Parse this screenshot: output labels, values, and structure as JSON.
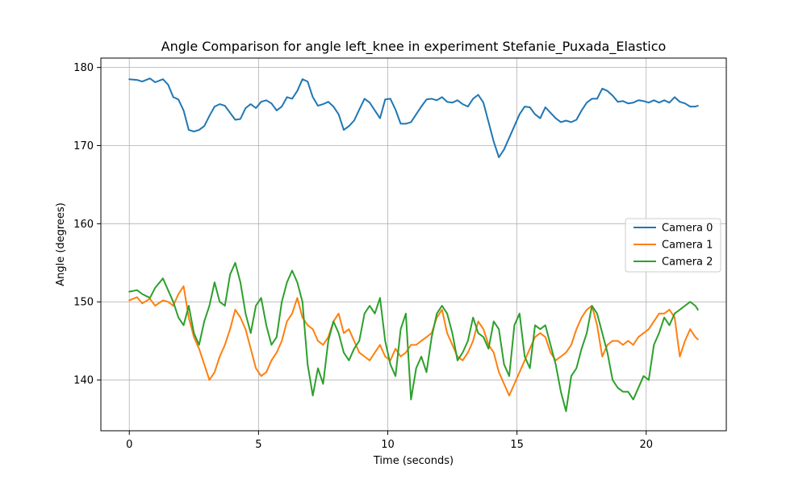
{
  "chart_data": {
    "type": "line",
    "title": "Angle Comparison for angle left_knee in experiment Stefanie_Puxada_Elastico",
    "xlabel": "Time (seconds)",
    "ylabel": "Angle (degrees)",
    "xlim": [
      -1.1,
      23.1
    ],
    "ylim": [
      133.5,
      181.2
    ],
    "xticks": [
      0,
      5,
      10,
      15,
      20
    ],
    "yticks": [
      140,
      150,
      160,
      170,
      180
    ],
    "grid": true,
    "legend_position": "center-right",
    "series": [
      {
        "name": "Camera 0",
        "color": "#1f77b4",
        "x": [
          0,
          0.3,
          0.5,
          0.8,
          1.0,
          1.3,
          1.5,
          1.7,
          1.9,
          2.1,
          2.3,
          2.5,
          2.7,
          2.9,
          3.1,
          3.3,
          3.5,
          3.7,
          3.9,
          4.1,
          4.3,
          4.5,
          4.7,
          4.9,
          5.1,
          5.3,
          5.5,
          5.7,
          5.9,
          6.1,
          6.3,
          6.5,
          6.7,
          6.9,
          7.1,
          7.3,
          7.5,
          7.7,
          7.9,
          8.1,
          8.3,
          8.5,
          8.7,
          8.9,
          9.1,
          9.3,
          9.5,
          9.7,
          9.9,
          10.1,
          10.3,
          10.5,
          10.7,
          10.9,
          11.1,
          11.3,
          11.5,
          11.7,
          11.9,
          12.1,
          12.3,
          12.5,
          12.7,
          12.9,
          13.1,
          13.3,
          13.5,
          13.7,
          13.9,
          14.1,
          14.3,
          14.5,
          14.7,
          14.9,
          15.1,
          15.3,
          15.5,
          15.7,
          15.9,
          16.1,
          16.3,
          16.5,
          16.7,
          16.9,
          17.1,
          17.3,
          17.5,
          17.7,
          17.9,
          18.1,
          18.3,
          18.5,
          18.7,
          18.9,
          19.1,
          19.3,
          19.5,
          19.7,
          19.9,
          20.1,
          20.3,
          20.5,
          20.7,
          20.9,
          21.1,
          21.3,
          21.5,
          21.7,
          21.9,
          22.0
        ],
        "values": [
          178.5,
          178.4,
          178.2,
          178.6,
          178.1,
          178.5,
          177.8,
          176.2,
          175.9,
          174.5,
          172.0,
          171.8,
          172.0,
          172.5,
          173.8,
          175.0,
          175.3,
          175.1,
          174.2,
          173.3,
          173.4,
          174.8,
          175.3,
          174.8,
          175.6,
          175.8,
          175.4,
          174.5,
          175.0,
          176.2,
          176.0,
          177.0,
          178.5,
          178.2,
          176.2,
          175.1,
          175.3,
          175.6,
          175.0,
          174.0,
          172.0,
          172.5,
          173.2,
          174.6,
          176.0,
          175.5,
          174.5,
          173.5,
          175.9,
          176.0,
          174.6,
          172.8,
          172.8,
          173.0,
          174.0,
          175.0,
          175.9,
          176.0,
          175.8,
          176.2,
          175.6,
          175.5,
          175.8,
          175.3,
          175.0,
          176.0,
          176.5,
          175.5,
          173.0,
          170.5,
          168.5,
          169.5,
          171.0,
          172.5,
          174.0,
          175.0,
          174.9,
          174.0,
          173.5,
          174.9,
          174.2,
          173.5,
          173.0,
          173.2,
          173.0,
          173.3,
          174.5,
          175.5,
          176.0,
          176.0,
          177.3,
          177.0,
          176.4,
          175.6,
          175.7,
          175.4,
          175.5,
          175.8,
          175.7,
          175.5,
          175.8,
          175.5,
          175.8,
          175.5,
          176.2,
          175.6,
          175.4,
          175.0,
          175.0,
          175.1
        ]
      },
      {
        "name": "Camera 1",
        "color": "#ff7f0e",
        "x": [
          0,
          0.3,
          0.5,
          0.8,
          1.0,
          1.3,
          1.5,
          1.7,
          1.9,
          2.1,
          2.3,
          2.5,
          2.7,
          2.9,
          3.1,
          3.3,
          3.5,
          3.7,
          3.9,
          4.1,
          4.3,
          4.5,
          4.7,
          4.9,
          5.1,
          5.3,
          5.5,
          5.7,
          5.9,
          6.1,
          6.3,
          6.5,
          6.7,
          6.9,
          7.1,
          7.3,
          7.5,
          7.7,
          7.9,
          8.1,
          8.3,
          8.5,
          8.7,
          8.9,
          9.1,
          9.3,
          9.5,
          9.7,
          9.9,
          10.1,
          10.3,
          10.5,
          10.7,
          10.9,
          11.1,
          11.3,
          11.5,
          11.7,
          11.9,
          12.1,
          12.3,
          12.5,
          12.7,
          12.9,
          13.1,
          13.3,
          13.5,
          13.7,
          13.9,
          14.1,
          14.3,
          14.5,
          14.7,
          14.9,
          15.1,
          15.3,
          15.5,
          15.7,
          15.9,
          16.1,
          16.3,
          16.5,
          16.7,
          16.9,
          17.1,
          17.3,
          17.5,
          17.7,
          17.9,
          18.1,
          18.3,
          18.5,
          18.7,
          18.9,
          19.1,
          19.3,
          19.5,
          19.7,
          19.9,
          20.1,
          20.3,
          20.5,
          20.7,
          20.9,
          21.1,
          21.3,
          21.5,
          21.7,
          21.9,
          22.0
        ],
        "values": [
          150.2,
          150.6,
          149.8,
          150.4,
          149.5,
          150.2,
          150.0,
          149.5,
          151.0,
          152.0,
          148.0,
          145.5,
          144.0,
          142.0,
          140.0,
          141.0,
          143.0,
          144.5,
          146.5,
          149.0,
          148.0,
          146.5,
          144.0,
          141.5,
          140.5,
          141.0,
          142.5,
          143.5,
          145.0,
          147.5,
          148.5,
          150.5,
          148.0,
          147.0,
          146.5,
          145.0,
          144.5,
          145.5,
          147.5,
          148.5,
          146.0,
          146.5,
          145.0,
          143.5,
          143.0,
          142.5,
          143.5,
          144.5,
          143.0,
          142.5,
          144.0,
          143.0,
          143.5,
          144.5,
          144.5,
          145.0,
          145.5,
          146.0,
          148.0,
          149.0,
          146.0,
          144.5,
          143.0,
          142.5,
          143.5,
          145.0,
          147.5,
          146.5,
          144.5,
          143.5,
          141.0,
          139.5,
          138.0,
          139.5,
          141.0,
          142.5,
          144.0,
          145.5,
          146.0,
          145.5,
          143.5,
          142.5,
          143.0,
          143.5,
          144.5,
          146.5,
          148.0,
          149.0,
          149.5,
          147.0,
          143.0,
          144.5,
          145.0,
          145.0,
          144.5,
          145.0,
          144.5,
          145.5,
          146.0,
          146.5,
          147.5,
          148.5,
          148.5,
          149.0,
          148.0,
          143.0,
          145.0,
          146.5,
          145.5,
          145.2
        ]
      },
      {
        "name": "Camera 2",
        "color": "#2ca02c",
        "x": [
          0,
          0.3,
          0.5,
          0.8,
          1.0,
          1.3,
          1.5,
          1.7,
          1.9,
          2.1,
          2.3,
          2.5,
          2.7,
          2.9,
          3.1,
          3.3,
          3.5,
          3.7,
          3.9,
          4.1,
          4.3,
          4.5,
          4.7,
          4.9,
          5.1,
          5.3,
          5.5,
          5.7,
          5.9,
          6.1,
          6.3,
          6.5,
          6.7,
          6.9,
          7.1,
          7.3,
          7.5,
          7.7,
          7.9,
          8.1,
          8.3,
          8.5,
          8.7,
          8.9,
          9.1,
          9.3,
          9.5,
          9.7,
          9.9,
          10.1,
          10.3,
          10.5,
          10.7,
          10.9,
          11.1,
          11.3,
          11.5,
          11.7,
          11.9,
          12.1,
          12.3,
          12.5,
          12.7,
          12.9,
          13.1,
          13.3,
          13.5,
          13.7,
          13.9,
          14.1,
          14.3,
          14.5,
          14.7,
          14.9,
          15.1,
          15.3,
          15.5,
          15.7,
          15.9,
          16.1,
          16.3,
          16.5,
          16.7,
          16.9,
          17.1,
          17.3,
          17.5,
          17.7,
          17.9,
          18.1,
          18.3,
          18.5,
          18.7,
          18.9,
          19.1,
          19.3,
          19.5,
          19.7,
          19.9,
          20.1,
          20.3,
          20.5,
          20.7,
          20.9,
          21.1,
          21.3,
          21.5,
          21.7,
          21.9,
          22.0
        ],
        "values": [
          151.3,
          151.5,
          151.0,
          150.5,
          151.8,
          153.0,
          151.5,
          150.0,
          148.0,
          147.0,
          149.5,
          146.0,
          144.5,
          147.5,
          149.5,
          152.5,
          150.0,
          149.5,
          153.5,
          155.0,
          152.5,
          148.5,
          146.0,
          149.5,
          150.5,
          147.0,
          144.5,
          145.5,
          150.0,
          152.5,
          154.0,
          152.5,
          150.0,
          142.0,
          138.0,
          141.5,
          139.5,
          145.0,
          147.5,
          146.0,
          143.5,
          142.5,
          144.0,
          145.0,
          148.5,
          149.5,
          148.5,
          150.5,
          145.0,
          142.0,
          140.5,
          146.5,
          148.5,
          137.5,
          141.5,
          143.0,
          141.0,
          145.5,
          148.5,
          149.5,
          148.5,
          146.0,
          142.5,
          143.5,
          145.0,
          148.0,
          146.0,
          145.5,
          144.0,
          147.5,
          146.5,
          142.0,
          140.5,
          147.0,
          148.5,
          143.0,
          141.5,
          147.0,
          146.5,
          147.0,
          144.5,
          142.0,
          138.5,
          136.0,
          140.5,
          141.5,
          144.0,
          146.0,
          149.5,
          148.5,
          146.0,
          143.5,
          140.0,
          139.0,
          138.5,
          138.5,
          137.5,
          139.0,
          140.5,
          140.0,
          144.5,
          146.0,
          148.0,
          147.0,
          148.5,
          149.0,
          149.5,
          150.0,
          149.5,
          149.0
        ]
      }
    ]
  }
}
